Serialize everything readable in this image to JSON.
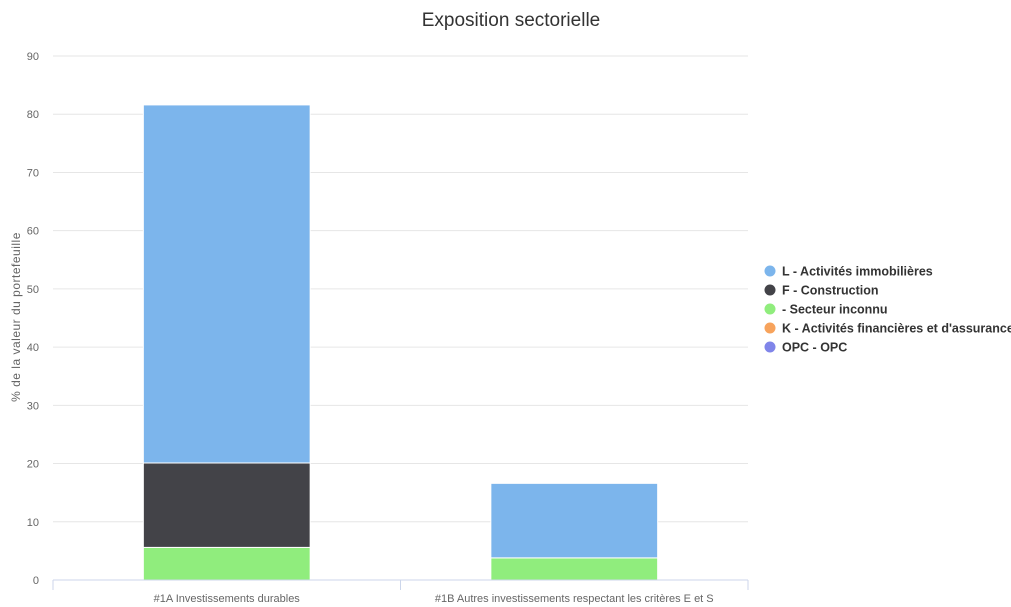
{
  "chart_data": {
    "type": "bar",
    "stacked": true,
    "title": "Exposition sectorielle",
    "xlabel": "",
    "ylabel": "% de la valeur du portefeuille",
    "ylim": [
      0,
      90
    ],
    "yticks": [
      0,
      10,
      20,
      30,
      40,
      50,
      60,
      70,
      80,
      90
    ],
    "grid": true,
    "legend_position": "right",
    "categories": [
      "#1A Investissements durables",
      "#1B Autres investissements respectant les critères E et S"
    ],
    "series": [
      {
        "name": "L - Activités immobilières",
        "color": "#7cb5ec",
        "values": [
          61.5,
          12.8
        ]
      },
      {
        "name": "F - Construction",
        "color": "#434348",
        "values": [
          14.5,
          0
        ]
      },
      {
        "name": "- Secteur inconnu",
        "color": "#90ed7d",
        "values": [
          5.6,
          3.8
        ]
      },
      {
        "name": "K - Activités financières et d'assurance",
        "color": "#f7a35c",
        "values": [
          0,
          0
        ]
      },
      {
        "name": "OPC - OPC",
        "color": "#8085e9",
        "values": [
          0,
          0
        ]
      }
    ]
  }
}
